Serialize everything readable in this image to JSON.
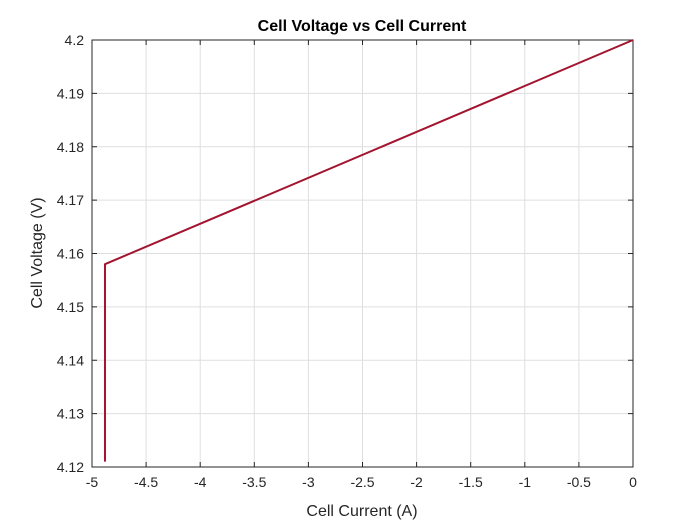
{
  "chart_data": {
    "type": "line",
    "title": "Cell Voltage vs Cell Current",
    "xlabel": "Cell Current (A)",
    "ylabel": "Cell Voltage (V)",
    "xlim": [
      -5,
      0
    ],
    "ylim": [
      4.12,
      4.2
    ],
    "xticks": [
      -5,
      -4.5,
      -4,
      -3.5,
      -3,
      -2.5,
      -2,
      -1.5,
      -1,
      -0.5,
      0
    ],
    "xtick_labels": [
      "-5",
      "-4.5",
      "-4",
      "-3.5",
      "-3",
      "-2.5",
      "-2",
      "-1.5",
      "-1",
      "-0.5",
      "0"
    ],
    "yticks": [
      4.12,
      4.13,
      4.14,
      4.15,
      4.16,
      4.17,
      4.18,
      4.19,
      4.2
    ],
    "ytick_labels": [
      "4.12",
      "4.13",
      "4.14",
      "4.15",
      "4.16",
      "4.17",
      "4.18",
      "4.19",
      "4.2"
    ],
    "grid": true,
    "series": [
      {
        "color": "#a2142f",
        "x": [
          -4.88,
          -4.88,
          0
        ],
        "y": [
          4.121,
          4.158,
          4.2
        ]
      }
    ]
  }
}
